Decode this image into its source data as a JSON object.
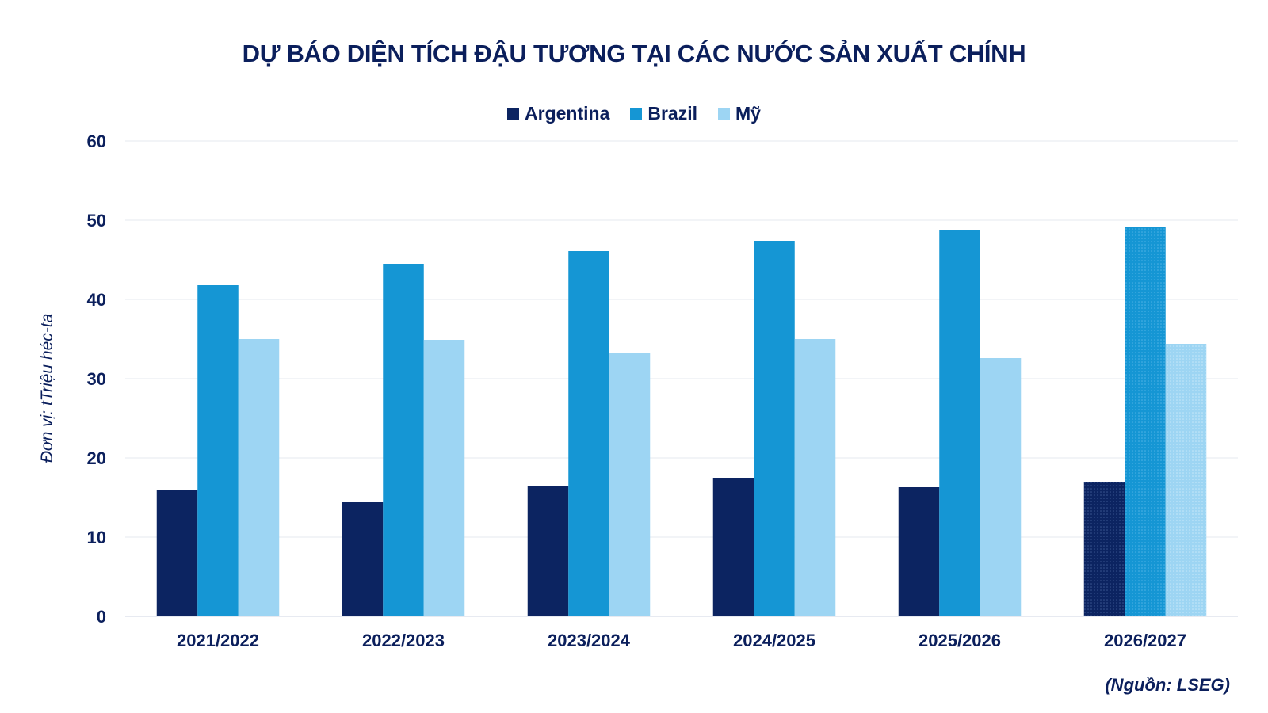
{
  "chart_data": {
    "type": "bar",
    "title": "DỰ BÁO DIỆN TÍCH ĐẬU TƯƠNG TẠI CÁC NƯỚC SẢN XUẤT CHÍNH",
    "ylabel": "Đơn vị: tTriệu héc-ta",
    "xlabel": "",
    "source": "(Nguồn: LSEG)",
    "categories": [
      "2021/2022",
      "2022/2023",
      "2023/2024",
      "2024/2025",
      "2025/2026",
      "2026/2027"
    ],
    "series": [
      {
        "name": "Argentina",
        "color": "#0c2461",
        "values": [
          15.9,
          14.4,
          16.4,
          17.5,
          16.3,
          16.9
        ]
      },
      {
        "name": "Brazil",
        "color": "#1596d4",
        "values": [
          41.8,
          44.5,
          46.1,
          47.4,
          48.8,
          49.2
        ]
      },
      {
        "name": "Mỹ",
        "color": "#9dd5f3",
        "values": [
          35.0,
          34.9,
          33.3,
          35.0,
          32.6,
          34.4
        ]
      }
    ],
    "ylim": [
      0,
      60
    ],
    "yticks": [
      0,
      10,
      20,
      30,
      40,
      50,
      60
    ],
    "grid": true,
    "legend_position": "top-center",
    "patterned_category": "2026/2027"
  }
}
